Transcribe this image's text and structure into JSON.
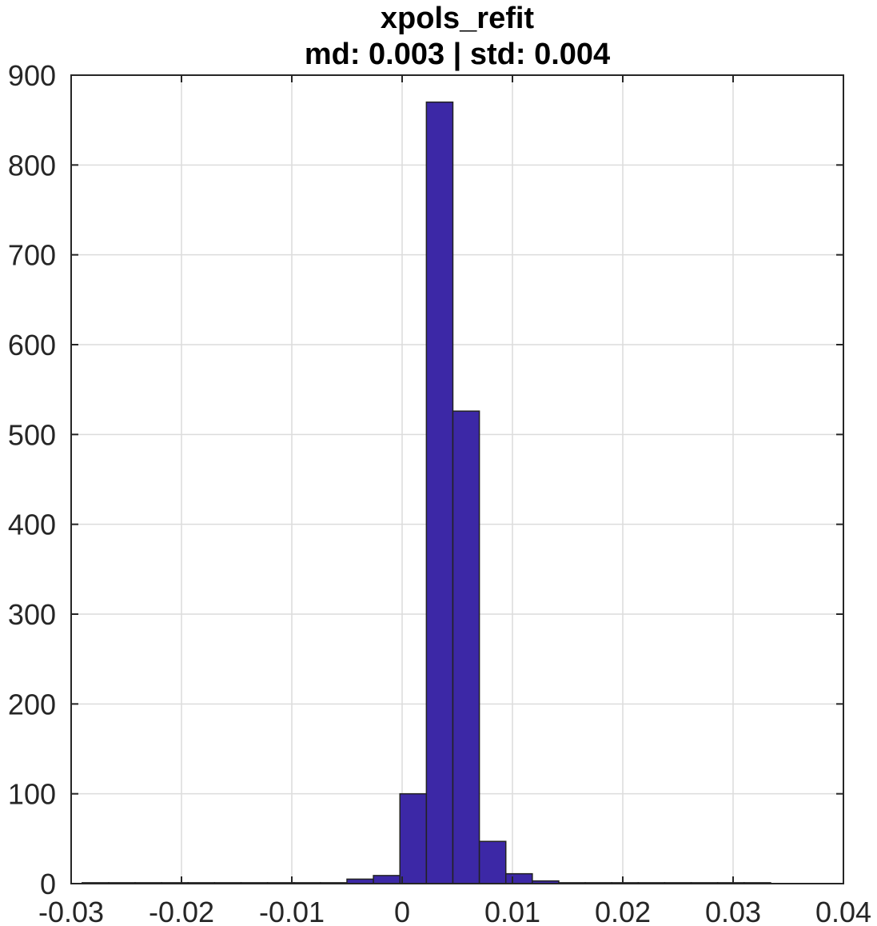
{
  "chart_data": {
    "type": "bar",
    "title": "xpols_refit",
    "subtitle": "md: 0.003 | std: 0.004",
    "xlabel": "",
    "ylabel": "",
    "xlim": [
      -0.03,
      0.04
    ],
    "ylim": [
      0,
      900
    ],
    "grid": true,
    "xticks": [
      "-0.03",
      "-0.02",
      "-0.01",
      "0",
      "0.01",
      "0.02",
      "0.03",
      "0.04"
    ],
    "yticks": [
      "0",
      "100",
      "200",
      "300",
      "400",
      "500",
      "600",
      "700",
      "800",
      "900"
    ],
    "bar_color": "#3c28a6",
    "bin_edges": [
      -0.029,
      -0.0266,
      -0.0242,
      -0.0218,
      -0.0194,
      -0.017,
      -0.0146,
      -0.0122,
      -0.0098,
      -0.0074,
      -0.005,
      -0.0026,
      -0.0002,
      0.0022,
      0.0046,
      0.007,
      0.0094,
      0.0118,
      0.0142,
      0.0166,
      0.019,
      0.0214,
      0.0238,
      0.0262,
      0.0286,
      0.031,
      0.0334
    ],
    "values": [
      1,
      1,
      1,
      1,
      1,
      1,
      1,
      1,
      1,
      1,
      5,
      9,
      100,
      870,
      526,
      47,
      11,
      3,
      1,
      1,
      1,
      1,
      1,
      1,
      1,
      1
    ]
  }
}
